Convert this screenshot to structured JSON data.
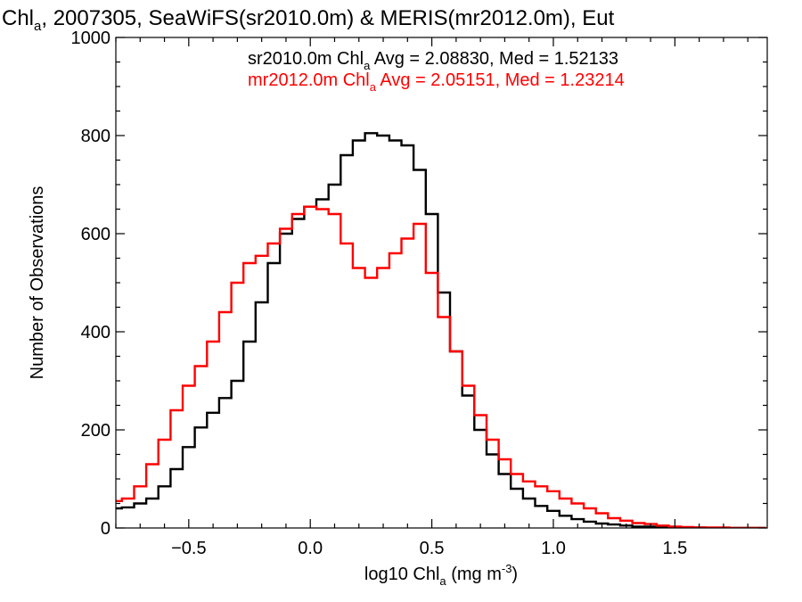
{
  "chart_data": {
    "type": "line",
    "step": true,
    "title_parts": [
      "Chl",
      "a",
      ", 2007305, SeaWiFS(sr2010.0m) & MERIS(mr2012.0m), Eut"
    ],
    "xlabel_parts": [
      "log10 Chl",
      "a",
      " (mg m",
      "-3",
      ")"
    ],
    "ylabel": "Number of Observations",
    "xlim": [
      -0.8,
      1.88
    ],
    "ylim": [
      0,
      1000
    ],
    "xticks": [
      -0.5,
      0.0,
      0.5,
      1.0,
      1.5
    ],
    "xtick_labels": [
      "−0.5",
      "0.0",
      "0.5",
      "1.0",
      "1.5"
    ],
    "yticks": [
      0,
      200,
      400,
      600,
      800,
      1000
    ],
    "ytick_labels": [
      "0",
      "200",
      "400",
      "600",
      "800",
      "1000"
    ],
    "legend_position": "top",
    "series": [
      {
        "name": "sr2010.0m",
        "color": "#000000",
        "stats_parts": [
          "sr2010.0m Chl",
          "a",
          " Avg = 2.08830, Med = 1.52133"
        ],
        "x": [
          -0.8,
          -0.75,
          -0.7,
          -0.65,
          -0.6,
          -0.55,
          -0.5,
          -0.45,
          -0.4,
          -0.35,
          -0.3,
          -0.25,
          -0.2,
          -0.15,
          -0.1,
          -0.05,
          0.0,
          0.05,
          0.1,
          0.15,
          0.2,
          0.25,
          0.3,
          0.35,
          0.4,
          0.45,
          0.5,
          0.55,
          0.6,
          0.65,
          0.7,
          0.75,
          0.8,
          0.85,
          0.9,
          0.95,
          1.0,
          1.05,
          1.1,
          1.15,
          1.2,
          1.25,
          1.3,
          1.35,
          1.4,
          1.45,
          1.5,
          1.55,
          1.6,
          1.65,
          1.7,
          1.75,
          1.8,
          1.85
        ],
        "values": [
          40,
          42,
          50,
          60,
          85,
          120,
          165,
          205,
          235,
          265,
          300,
          380,
          460,
          540,
          600,
          630,
          655,
          670,
          700,
          760,
          790,
          805,
          800,
          790,
          780,
          730,
          640,
          480,
          360,
          270,
          200,
          150,
          110,
          80,
          60,
          45,
          35,
          25,
          18,
          13,
          9,
          7,
          5,
          3,
          3,
          2,
          1,
          1,
          1,
          0,
          0,
          0,
          0,
          0
        ]
      },
      {
        "name": "mr2012.0m",
        "color": "#ff0000",
        "stats_parts": [
          "mr2012.0m Chl",
          "a",
          " Avg = 2.05151, Med = 1.23214"
        ],
        "x": [
          -0.8,
          -0.75,
          -0.7,
          -0.65,
          -0.6,
          -0.55,
          -0.5,
          -0.45,
          -0.4,
          -0.35,
          -0.3,
          -0.25,
          -0.2,
          -0.15,
          -0.1,
          -0.05,
          0.0,
          0.05,
          0.1,
          0.15,
          0.2,
          0.25,
          0.3,
          0.35,
          0.4,
          0.45,
          0.5,
          0.55,
          0.6,
          0.65,
          0.7,
          0.75,
          0.8,
          0.85,
          0.9,
          0.95,
          1.0,
          1.05,
          1.1,
          1.15,
          1.2,
          1.25,
          1.3,
          1.35,
          1.4,
          1.45,
          1.5,
          1.55,
          1.6,
          1.65,
          1.7,
          1.75,
          1.8,
          1.85
        ],
        "values": [
          55,
          60,
          85,
          130,
          180,
          240,
          290,
          330,
          380,
          440,
          500,
          540,
          555,
          580,
          610,
          640,
          655,
          650,
          640,
          580,
          530,
          510,
          530,
          560,
          590,
          620,
          520,
          430,
          360,
          290,
          230,
          180,
          140,
          110,
          95,
          85,
          75,
          60,
          50,
          40,
          30,
          20,
          15,
          10,
          8,
          5,
          3,
          2,
          1,
          1,
          1,
          0,
          0,
          0
        ]
      }
    ]
  }
}
